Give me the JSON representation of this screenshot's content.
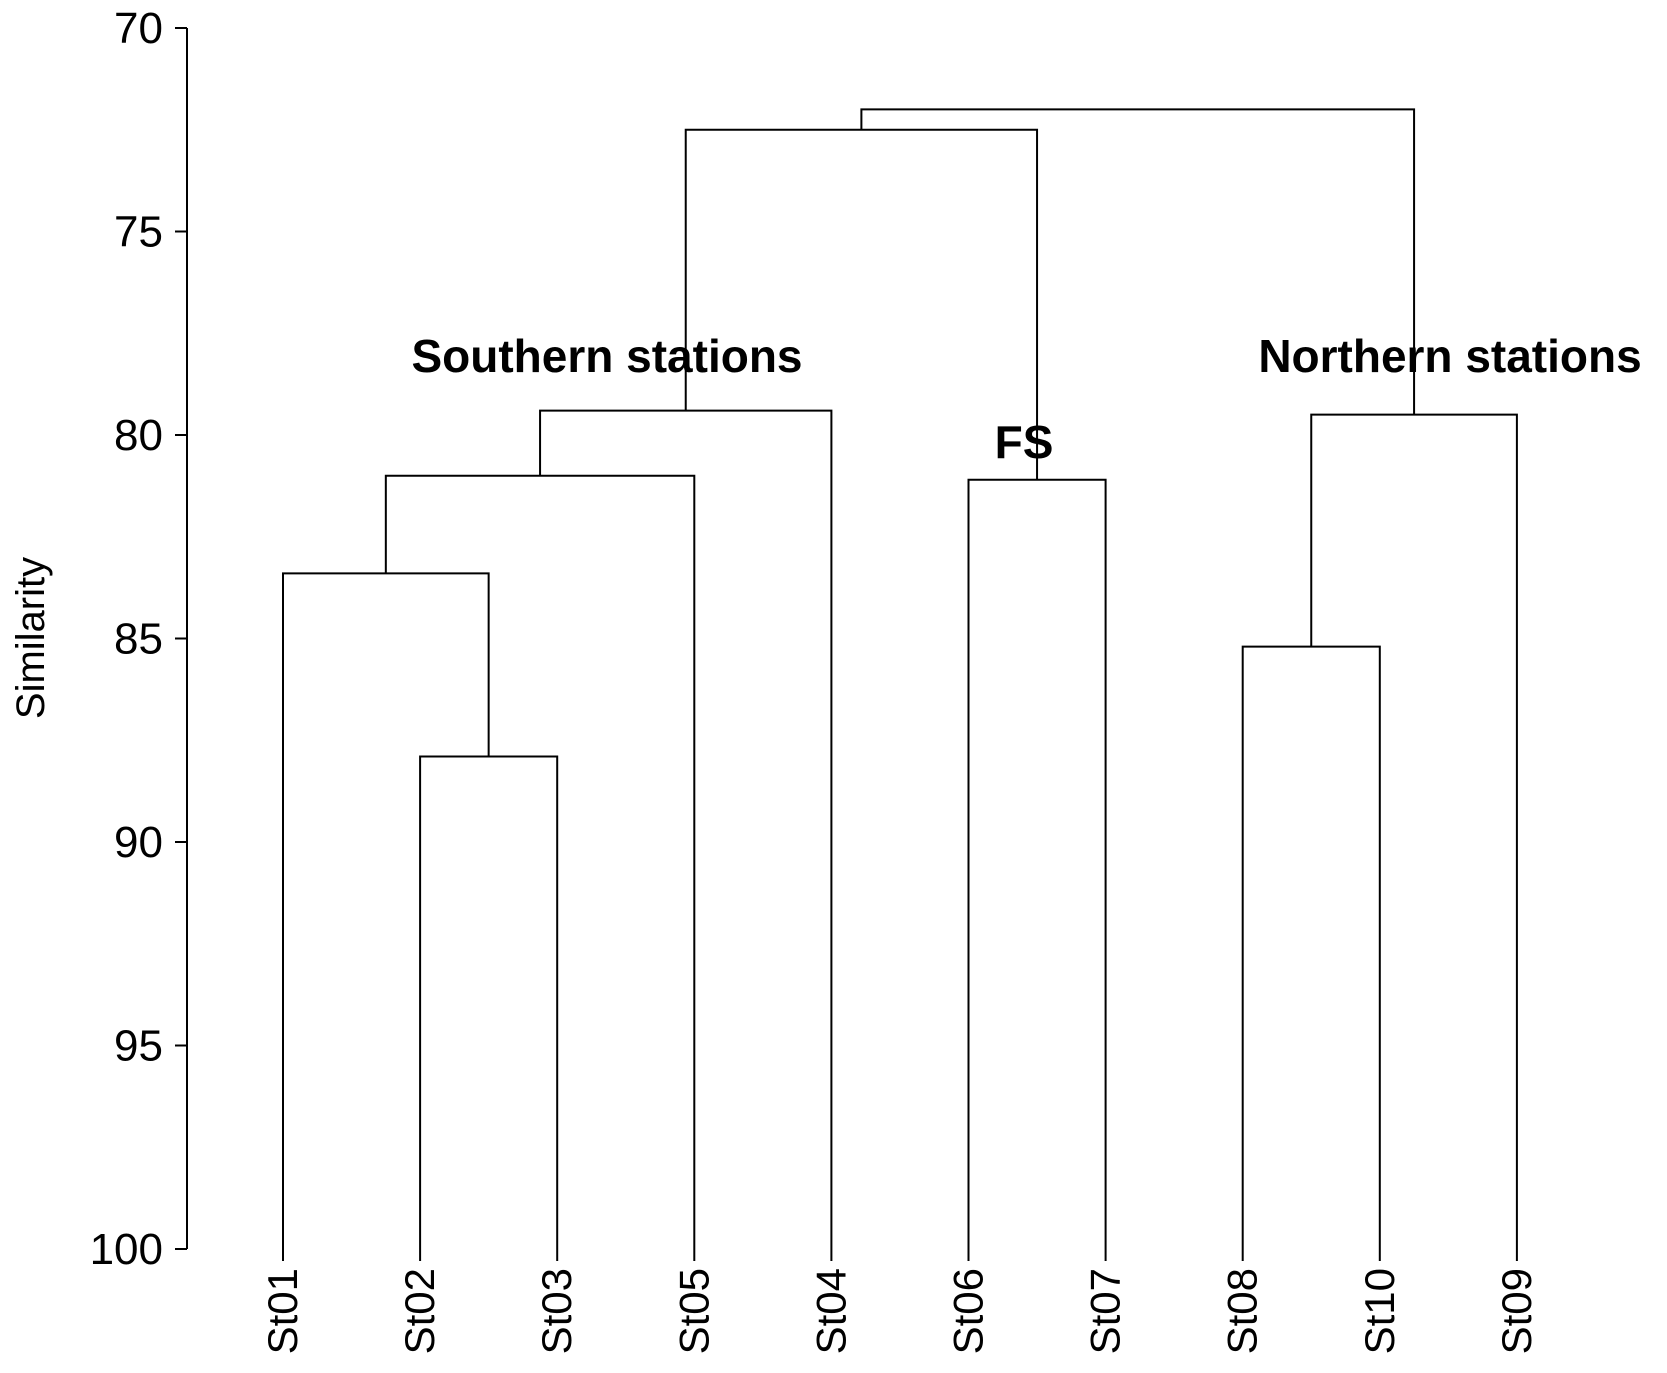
{
  "chart_data": {
    "type": "dendrogram",
    "ylabel": "Similarity",
    "ylim": [
      70,
      100
    ],
    "yaxis_inverted": true,
    "yticks": [
      70,
      75,
      80,
      85,
      90,
      95,
      100
    ],
    "leaves": [
      "St01",
      "St02",
      "St03",
      "St05",
      "St04",
      "St06",
      "St07",
      "St08",
      "St10",
      "St09"
    ],
    "merges": [
      {
        "id": "m1",
        "left": "St02",
        "right": "St03",
        "similarity": 87.9
      },
      {
        "id": "m2",
        "left": "St01",
        "right": "m1",
        "similarity": 83.4
      },
      {
        "id": "m3",
        "left": "m2",
        "right": "St05",
        "similarity": 81.0
      },
      {
        "id": "m4",
        "left": "m3",
        "right": "St04",
        "similarity": 79.4
      },
      {
        "id": "m5",
        "left": "St06",
        "right": "St07",
        "similarity": 81.1
      },
      {
        "id": "m6",
        "left": "m4",
        "right": "m5",
        "similarity": 72.5
      },
      {
        "id": "m7",
        "left": "St08",
        "right": "St10",
        "similarity": 85.2
      },
      {
        "id": "m8",
        "left": "m7",
        "right": "St09",
        "similarity": 79.5
      },
      {
        "id": "m9",
        "left": "m6",
        "right": "m8",
        "similarity": 72.0
      }
    ],
    "annotations": [
      {
        "key": "southern",
        "text": "Southern stations"
      },
      {
        "key": "fs",
        "text": "FS"
      },
      {
        "key": "northern",
        "text": "Northern stations"
      }
    ],
    "grid": false,
    "legend": "none"
  }
}
